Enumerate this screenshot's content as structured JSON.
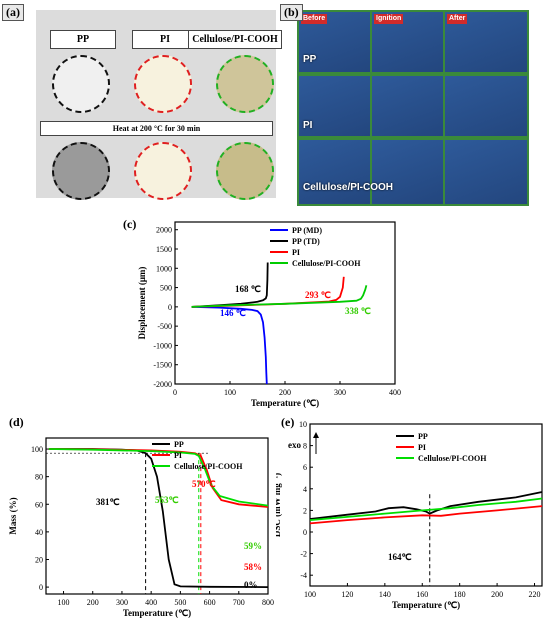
{
  "panel_a": {
    "letter": "(a)",
    "headers": [
      "PP",
      "PI",
      "Cellulose/PI-COOH"
    ],
    "condition": "Heat at 200 °C for 30 min"
  },
  "panel_b": {
    "letter": "(b)",
    "columns": [
      "Before",
      "Ignition",
      "After"
    ],
    "rows": [
      "PP",
      "PI",
      "Cellulose/PI-COOH"
    ]
  },
  "chart_data": [
    {
      "panel": "(c)",
      "type": "line",
      "xlabel": "Temperature (℃)",
      "ylabel": "Displacement (μm)",
      "xlim": [
        0,
        400
      ],
      "ylim": [
        -2000,
        2200
      ],
      "xticks": [
        0,
        100,
        200,
        300,
        400
      ],
      "yticks": [
        -2000,
        -1500,
        -1000,
        -500,
        0,
        500,
        1000,
        1500,
        2000
      ],
      "legend_position": "top-right",
      "series": [
        {
          "name": "PP (MD)",
          "color": "#0000ff",
          "x": [
            30,
            80,
            120,
            140,
            150,
            156,
            160,
            163,
            165,
            166,
            167
          ],
          "y": [
            0,
            -20,
            -50,
            -80,
            -110,
            -200,
            -400,
            -800,
            -1300,
            -1700,
            -2000
          ]
        },
        {
          "name": "PP (TD)",
          "color": "#000000",
          "x": [
            30,
            80,
            120,
            150,
            160,
            165,
            167,
            168,
            168.5
          ],
          "y": [
            0,
            40,
            80,
            130,
            170,
            220,
            300,
            700,
            1150
          ]
        },
        {
          "name": "PI",
          "color": "#ff0000",
          "x": [
            30,
            100,
            200,
            280,
            293,
            300,
            305,
            307
          ],
          "y": [
            0,
            30,
            80,
            140,
            180,
            260,
            500,
            780
          ]
        },
        {
          "name": "Cellulose/PI-COOH",
          "color": "#00cc00",
          "x": [
            30,
            100,
            200,
            300,
            330,
            338,
            342,
            346,
            348
          ],
          "y": [
            0,
            40,
            80,
            130,
            160,
            210,
            300,
            450,
            560
          ]
        }
      ],
      "annotations": [
        {
          "text": "168 ℃",
          "color": "#000000"
        },
        {
          "text": "146 ℃",
          "color": "#0000ff"
        },
        {
          "text": "293 ℃",
          "color": "#ff0000"
        },
        {
          "text": "338 ℃",
          "color": "#33cc00"
        }
      ]
    },
    {
      "panel": "(d)",
      "type": "line",
      "xlabel": "Temperature (℃)",
      "ylabel": "Mass (%)",
      "xlim": [
        40,
        800
      ],
      "ylim": [
        -5,
        108
      ],
      "xticks": [
        100,
        200,
        300,
        400,
        500,
        600,
        700,
        800
      ],
      "yticks": [
        0,
        20,
        40,
        60,
        80,
        100
      ],
      "legend_position": "top-right",
      "series": [
        {
          "name": "PP",
          "color": "#000000",
          "x": [
            50,
            200,
            300,
            350,
            381,
            400,
            420,
            440,
            460,
            480,
            500,
            600,
            800
          ],
          "y": [
            100,
            100,
            99.5,
            99,
            97,
            93,
            80,
            55,
            20,
            2,
            0.5,
            0.2,
            0
          ]
        },
        {
          "name": "PI",
          "color": "#ff0000",
          "x": [
            50,
            200,
            400,
            500,
            550,
            570,
            590,
            610,
            640,
            700,
            800
          ],
          "y": [
            100,
            99.8,
            99,
            98,
            97,
            95,
            85,
            72,
            63,
            60,
            58
          ]
        },
        {
          "name": "Cellulose/PI-COOH",
          "color": "#00dd00",
          "x": [
            50,
            200,
            400,
            500,
            550,
            563,
            585,
            605,
            635,
            700,
            800
          ],
          "y": [
            100,
            99.5,
            98.5,
            97.5,
            96.5,
            95,
            85,
            74,
            66,
            62,
            59
          ]
        }
      ],
      "annotations": [
        {
          "text": "381℃",
          "color": "#000000"
        },
        {
          "text": "563℃",
          "color": "#33cc00"
        },
        {
          "text": "570℃",
          "color": "#ff0000"
        },
        {
          "text": "59%",
          "color": "#33cc00"
        },
        {
          "text": "58%",
          "color": "#ff0000"
        },
        {
          "text": "0%",
          "color": "#000000"
        }
      ]
    },
    {
      "panel": "(e)",
      "type": "line",
      "xlabel": "Temperature (℃)",
      "ylabel": "DSC (mW mg⁻¹)",
      "xlim": [
        100,
        224
      ],
      "ylim": [
        -5,
        10
      ],
      "xticks": [
        100,
        120,
        140,
        160,
        180,
        200,
        220
      ],
      "yticks": [
        -4,
        -2,
        0,
        2,
        4,
        6,
        8,
        10
      ],
      "legend_position": "top-right",
      "series": [
        {
          "name": "PP",
          "color": "#000000",
          "x": [
            100,
            120,
            135,
            142,
            150,
            157,
            162,
            164,
            168,
            175,
            190,
            210,
            224
          ],
          "y": [
            1.2,
            1.6,
            1.9,
            2.2,
            2.3,
            2.1,
            1.9,
            1.7,
            2.0,
            2.4,
            2.8,
            3.2,
            3.7
          ]
        },
        {
          "name": "PI",
          "color": "#ff0000",
          "x": [
            100,
            120,
            140,
            160,
            170,
            180,
            200,
            224
          ],
          "y": [
            0.8,
            1.1,
            1.35,
            1.55,
            1.5,
            1.7,
            2.0,
            2.4
          ]
        },
        {
          "name": "Cellulose/PI-COOH",
          "color": "#00dd00",
          "x": [
            100,
            120,
            140,
            160,
            175,
            190,
            210,
            224
          ],
          "y": [
            1.1,
            1.4,
            1.7,
            2.0,
            2.2,
            2.5,
            2.8,
            3.1
          ]
        }
      ],
      "annotations": [
        {
          "text": "exo",
          "color": "#000000"
        },
        {
          "text": "164℃",
          "color": "#000000"
        }
      ]
    }
  ]
}
